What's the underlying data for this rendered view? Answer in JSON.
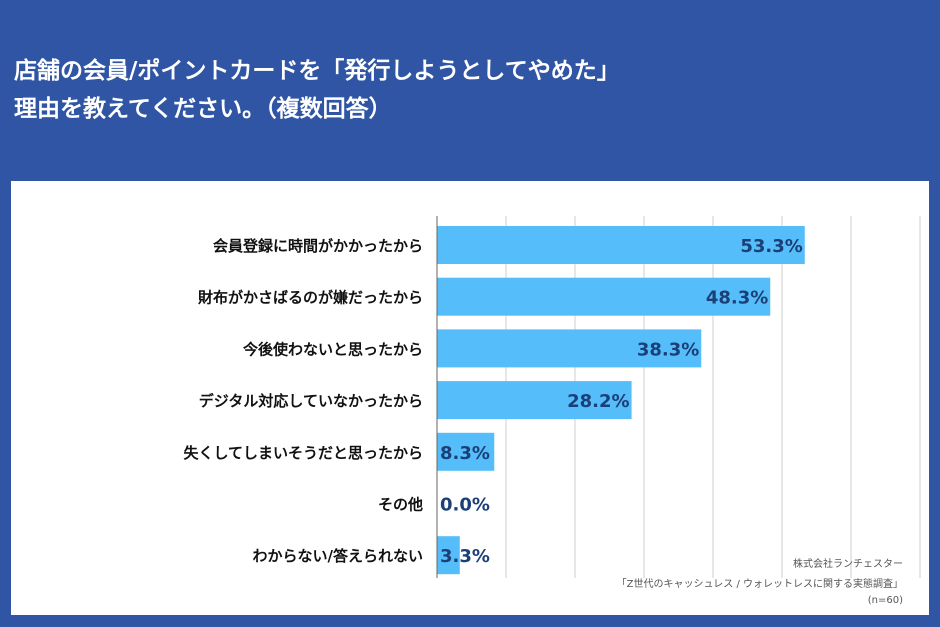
{
  "title": {
    "line1": "店舗の会員/ポイントカードを「発行しようとしてやめた」",
    "line2": "理由を教えてください。（複数回答）"
  },
  "colors": {
    "background": "#2f55a4",
    "bar": "#55bdf9",
    "value_label": "#1b3f77",
    "grid": "#cfcfcf",
    "axis": "#666666"
  },
  "chart_data": {
    "type": "bar",
    "orientation": "horizontal",
    "categories": [
      "会員登録に時間がかかったから",
      "財布がかさばるのが嫌だったから",
      "今後使わないと思ったから",
      "デジタル対応していなかったから",
      "失くしてしまいそうだと思ったから",
      "その他",
      "わからない/答えられない"
    ],
    "values": [
      53.3,
      48.3,
      38.3,
      28.2,
      8.3,
      0.0,
      3.3
    ],
    "value_labels": [
      "53.3%",
      "48.3%",
      "38.3%",
      "28.2%",
      "8.3%",
      "0.0%",
      "3.3%"
    ],
    "xlim": [
      0,
      70
    ],
    "grid": true
  },
  "source": {
    "company": "株式会社ランチェスター",
    "survey": "「Z世代のキャッシュレス / ウォレットレスに関する実態調査」",
    "sample": "(n=60)"
  }
}
